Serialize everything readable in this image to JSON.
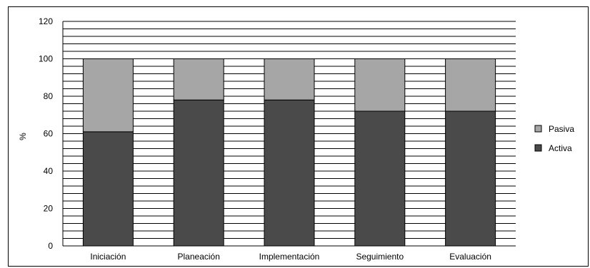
{
  "chart_data": {
    "type": "bar",
    "stacked": true,
    "categories": [
      "Iniciación",
      "Planeación",
      "Implementación",
      "Seguimiento",
      "Evaluación"
    ],
    "series": [
      {
        "name": "Activa",
        "values": [
          61,
          78,
          78,
          72,
          72
        ],
        "color": "#4a4a4a"
      },
      {
        "name": "Pasiva",
        "values": [
          39,
          22,
          22,
          28,
          28
        ],
        "color": "#a6a6a6"
      }
    ],
    "ylabel": "%",
    "xlabel": "",
    "ylim": [
      0,
      120
    ],
    "yticks": [
      0,
      20,
      40,
      60,
      80,
      100,
      120
    ],
    "grid": true,
    "grid_step": 4,
    "legend": "right",
    "legend_order": [
      "Pasiva",
      "Activa"
    ]
  }
}
